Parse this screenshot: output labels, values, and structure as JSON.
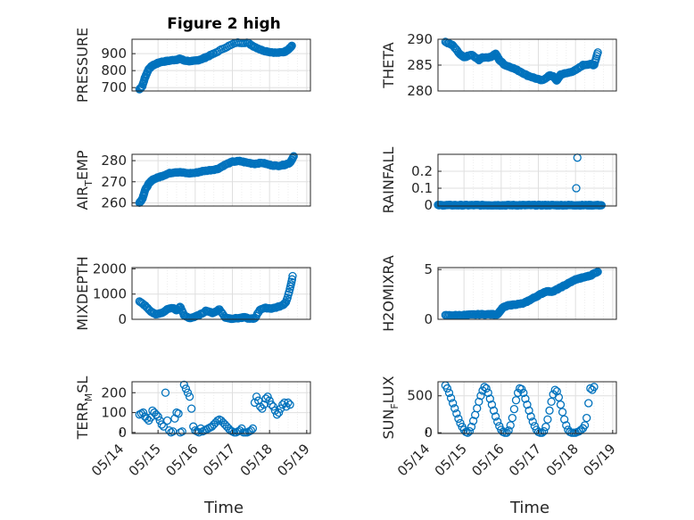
{
  "figure": {
    "title": "Figure 2 high",
    "marker_color": "#0072bd"
  },
  "chart_data": [
    {
      "type": "scatter",
      "id": "pressure",
      "ylabel": "PRESSURE",
      "yticks": [
        "700",
        "800",
        "900"
      ],
      "ylim": [
        680,
        985
      ],
      "xlim": [
        0,
        4.8
      ],
      "segments": [
        {
          "x": [
            0.0,
            0.08,
            0.15,
            0.25,
            0.35,
            0.45,
            0.55,
            0.7,
            0.85,
            1.0,
            1.1,
            1.2,
            1.4,
            1.55,
            1.7,
            1.8,
            2.0,
            2.3,
            2.6,
            2.9,
            3.1,
            3.3,
            3.5,
            3.7,
            3.9,
            4.0,
            4.1
          ],
          "y": [
            690,
            710,
            760,
            810,
            830,
            840,
            850,
            855,
            860,
            865,
            870,
            860,
            855,
            860,
            870,
            880,
            900,
            935,
            965,
            965,
            940,
            920,
            910,
            905,
            910,
            925,
            945
          ]
        }
      ],
      "n": 160
    },
    {
      "type": "scatter",
      "id": "theta",
      "ylabel": "THETA",
      "yticks": [
        "280",
        "285",
        "290"
      ],
      "ylim": [
        280,
        290
      ],
      "xlim": [
        0,
        4.8
      ],
      "segments": [
        {
          "x": [
            0.0,
            0.2,
            0.4,
            0.5,
            0.7,
            0.9,
            1.0,
            1.2,
            1.35,
            1.45,
            1.6,
            1.8,
            2.0,
            2.2,
            2.4,
            2.6,
            2.8,
            2.9,
            3.0,
            3.1,
            3.3,
            3.5,
            3.7,
            3.9,
            4.0,
            4.1
          ],
          "y": [
            289.5,
            288.8,
            287,
            286.5,
            287,
            286,
            286.5,
            286.5,
            287.2,
            286,
            285,
            284.5,
            283.8,
            283,
            282.5,
            282,
            283,
            282.8,
            282,
            283.2,
            283.5,
            284,
            285,
            285.2,
            285,
            287.5
          ]
        }
      ],
      "n": 160
    },
    {
      "type": "scatter",
      "id": "air_temp",
      "ylabel_main": "AIR",
      "ylabel_sub": "T",
      "ylabel_rest": "EMP",
      "yticks": [
        "260",
        "270",
        "280"
      ],
      "ylim": [
        258.5,
        283
      ],
      "xlim": [
        0,
        4.8
      ],
      "segments": [
        {
          "x": [
            0.0,
            0.08,
            0.15,
            0.25,
            0.35,
            0.5,
            0.65,
            0.8,
            0.95,
            1.1,
            1.3,
            1.5,
            1.7,
            1.9,
            2.1,
            2.3,
            2.5,
            2.7,
            2.9,
            3.1,
            3.3,
            3.5,
            3.7,
            3.9,
            4.05,
            4.15
          ],
          "y": [
            260,
            262,
            266,
            269,
            271,
            272,
            273,
            274,
            274.5,
            274.5,
            274,
            274.2,
            275,
            275.5,
            276,
            278,
            279.5,
            279.8,
            279,
            278.5,
            279,
            278,
            277.5,
            278,
            279,
            282
          ]
        }
      ],
      "n": 160
    },
    {
      "type": "scatter",
      "id": "rainfall",
      "ylabel": "RAINFALL",
      "yticks": [
        "0",
        "0.1",
        "0.2"
      ],
      "ylim": [
        -0.005,
        0.3
      ],
      "xlim": [
        0,
        4.8
      ],
      "segments": [
        {
          "x": [
            -0.2,
            4.2
          ],
          "y": [
            0,
            0
          ]
        }
      ],
      "extra_points": [
        {
          "x": 3.55,
          "y": 0.28
        },
        {
          "x": 3.52,
          "y": 0.1
        }
      ],
      "n": 170
    },
    {
      "type": "scatter",
      "id": "mixdepth",
      "ylabel": "MIXDEPTH",
      "yticks": [
        "0",
        "1000",
        "2000"
      ],
      "ylim": [
        0,
        2050
      ],
      "xlim": [
        0,
        4.8
      ],
      "segments": [
        {
          "x": [
            0.0,
            0.15,
            0.3,
            0.45,
            0.6,
            0.75,
            0.9,
            1.0,
            1.1,
            1.2,
            1.35,
            1.5,
            1.65,
            1.8,
            1.95,
            2.05,
            2.15,
            2.3,
            2.45,
            2.6,
            2.75,
            2.85,
            2.95,
            3.1,
            3.25,
            3.4,
            3.55,
            3.7,
            3.85,
            3.95,
            4.05,
            4.12
          ],
          "y": [
            700,
            550,
            300,
            200,
            250,
            400,
            450,
            350,
            500,
            150,
            50,
            100,
            200,
            350,
            250,
            300,
            400,
            80,
            30,
            40,
            60,
            80,
            20,
            30,
            400,
            450,
            430,
            480,
            550,
            700,
            1200,
            1700
          ]
        }
      ],
      "n": 150
    },
    {
      "type": "scatter",
      "id": "h2omixra",
      "ylabel": "H2OMIXRA",
      "yticks": [
        "0",
        "5"
      ],
      "ylim": [
        0,
        5.2
      ],
      "xlim": [
        0,
        4.8
      ],
      "segments": [
        {
          "x": [
            0.0,
            0.3,
            0.6,
            0.9,
            1.2,
            1.4,
            1.55,
            1.7,
            1.9,
            2.1,
            2.3,
            2.5,
            2.7,
            2.9,
            3.1,
            3.3,
            3.5,
            3.7,
            3.9,
            4.1
          ],
          "y": [
            0.4,
            0.4,
            0.45,
            0.5,
            0.5,
            0.5,
            1.2,
            1.4,
            1.5,
            1.6,
            2.0,
            2.4,
            2.8,
            2.8,
            3.2,
            3.6,
            4.0,
            4.2,
            4.4,
            4.8
          ]
        }
      ],
      "n": 170
    },
    {
      "type": "scatter",
      "id": "terr_msl",
      "ylabel_main": "TERR",
      "ylabel_sub": "M",
      "ylabel_rest": "SL",
      "yticks": [
        "0",
        "100",
        "200"
      ],
      "ylim": [
        -5,
        255
      ],
      "xlim": [
        0,
        4.8
      ],
      "scatter_points": [
        [
          0.0,
          90
        ],
        [
          0.05,
          95
        ],
        [
          0.1,
          100
        ],
        [
          0.15,
          80
        ],
        [
          0.2,
          70
        ],
        [
          0.25,
          60
        ],
        [
          0.3,
          75
        ],
        [
          0.35,
          110
        ],
        [
          0.4,
          100
        ],
        [
          0.45,
          90
        ],
        [
          0.5,
          80
        ],
        [
          0.55,
          60
        ],
        [
          0.6,
          40
        ],
        [
          0.65,
          30
        ],
        [
          0.7,
          200
        ],
        [
          0.75,
          60
        ],
        [
          0.8,
          10
        ],
        [
          0.85,
          0
        ],
        [
          0.9,
          5
        ],
        [
          0.95,
          70
        ],
        [
          1.0,
          100
        ],
        [
          1.05,
          95
        ],
        [
          1.1,
          0
        ],
        [
          1.15,
          5
        ],
        [
          1.2,
          240
        ],
        [
          1.25,
          220
        ],
        [
          1.3,
          200
        ],
        [
          1.35,
          180
        ],
        [
          1.4,
          120
        ],
        [
          1.45,
          30
        ],
        [
          1.5,
          10
        ],
        [
          1.55,
          5
        ],
        [
          1.6,
          0
        ],
        [
          1.65,
          20
        ],
        [
          1.7,
          5
        ],
        [
          1.75,
          10
        ],
        [
          1.8,
          15
        ],
        [
          1.85,
          20
        ],
        [
          1.9,
          25
        ],
        [
          1.95,
          30
        ],
        [
          2.0,
          40
        ],
        [
          2.05,
          50
        ],
        [
          2.1,
          60
        ],
        [
          2.15,
          65
        ],
        [
          2.2,
          60
        ],
        [
          2.25,
          50
        ],
        [
          2.3,
          40
        ],
        [
          2.35,
          30
        ],
        [
          2.4,
          20
        ],
        [
          2.45,
          10
        ],
        [
          2.5,
          5
        ],
        [
          2.55,
          0
        ],
        [
          2.6,
          0
        ],
        [
          2.65,
          5
        ],
        [
          2.7,
          10
        ],
        [
          2.75,
          20
        ],
        [
          2.8,
          0
        ],
        [
          2.85,
          0
        ],
        [
          2.9,
          0
        ],
        [
          2.95,
          5
        ],
        [
          3.0,
          10
        ],
        [
          3.05,
          20
        ],
        [
          3.1,
          150
        ],
        [
          3.15,
          180
        ],
        [
          3.2,
          160
        ],
        [
          3.25,
          130
        ],
        [
          3.3,
          120
        ],
        [
          3.35,
          140
        ],
        [
          3.4,
          170
        ],
        [
          3.45,
          180
        ],
        [
          3.5,
          160
        ],
        [
          3.55,
          140
        ],
        [
          3.6,
          130
        ],
        [
          3.65,
          110
        ],
        [
          3.7,
          90
        ],
        [
          3.75,
          100
        ],
        [
          3.8,
          120
        ],
        [
          3.85,
          140
        ],
        [
          3.9,
          150
        ],
        [
          3.95,
          130
        ],
        [
          4.0,
          150
        ],
        [
          4.05,
          140
        ]
      ]
    },
    {
      "type": "scatter",
      "id": "sun_flux",
      "ylabel_main": "SUN",
      "ylabel_sub": "F",
      "ylabel_rest": "LUX",
      "yticks": [
        "0",
        "500"
      ],
      "ylim": [
        -10,
        690
      ],
      "xlim": [
        0,
        4.8
      ],
      "scatter_points": [
        [
          0.0,
          640
        ],
        [
          0.05,
          600
        ],
        [
          0.1,
          540
        ],
        [
          0.15,
          470
        ],
        [
          0.2,
          400
        ],
        [
          0.25,
          330
        ],
        [
          0.3,
          260
        ],
        [
          0.35,
          190
        ],
        [
          0.4,
          130
        ],
        [
          0.45,
          80
        ],
        [
          0.5,
          40
        ],
        [
          0.55,
          10
        ],
        [
          0.6,
          0
        ],
        [
          0.65,
          20
        ],
        [
          0.7,
          80
        ],
        [
          0.75,
          160
        ],
        [
          0.8,
          240
        ],
        [
          0.85,
          330
        ],
        [
          0.9,
          420
        ],
        [
          0.95,
          500
        ],
        [
          1.0,
          570
        ],
        [
          1.05,
          620
        ],
        [
          1.1,
          600
        ],
        [
          1.15,
          540
        ],
        [
          1.2,
          460
        ],
        [
          1.25,
          380
        ],
        [
          1.3,
          300
        ],
        [
          1.35,
          220
        ],
        [
          1.4,
          150
        ],
        [
          1.45,
          90
        ],
        [
          1.5,
          40
        ],
        [
          1.55,
          10
        ],
        [
          1.6,
          0
        ],
        [
          1.65,
          0
        ],
        [
          1.7,
          30
        ],
        [
          1.75,
          100
        ],
        [
          1.8,
          200
        ],
        [
          1.85,
          320
        ],
        [
          1.9,
          440
        ],
        [
          1.95,
          540
        ],
        [
          2.0,
          600
        ],
        [
          2.05,
          590
        ],
        [
          2.1,
          540
        ],
        [
          2.15,
          460
        ],
        [
          2.2,
          380
        ],
        [
          2.25,
          300
        ],
        [
          2.3,
          220
        ],
        [
          2.35,
          150
        ],
        [
          2.4,
          90
        ],
        [
          2.45,
          40
        ],
        [
          2.5,
          10
        ],
        [
          2.55,
          0
        ],
        [
          2.6,
          0
        ],
        [
          2.65,
          20
        ],
        [
          2.7,
          80
        ],
        [
          2.75,
          180
        ],
        [
          2.8,
          300
        ],
        [
          2.85,
          420
        ],
        [
          2.9,
          520
        ],
        [
          2.95,
          580
        ],
        [
          3.0,
          560
        ],
        [
          3.05,
          480
        ],
        [
          3.1,
          380
        ],
        [
          3.15,
          280
        ],
        [
          3.2,
          180
        ],
        [
          3.25,
          100
        ],
        [
          3.3,
          40
        ],
        [
          3.35,
          10
        ],
        [
          3.4,
          0
        ],
        [
          3.45,
          0
        ],
        [
          3.5,
          0
        ],
        [
          3.55,
          10
        ],
        [
          3.6,
          20
        ],
        [
          3.65,
          40
        ],
        [
          3.7,
          60
        ],
        [
          3.75,
          100
        ],
        [
          3.8,
          200
        ],
        [
          3.85,
          400
        ],
        [
          3.9,
          600
        ],
        [
          3.95,
          580
        ],
        [
          4.0,
          620
        ]
      ]
    }
  ],
  "xaxis": {
    "xlabel": "Time",
    "ticks": [
      "05/14",
      "05/15",
      "05/16",
      "05/17",
      "05/18",
      "05/19"
    ]
  }
}
